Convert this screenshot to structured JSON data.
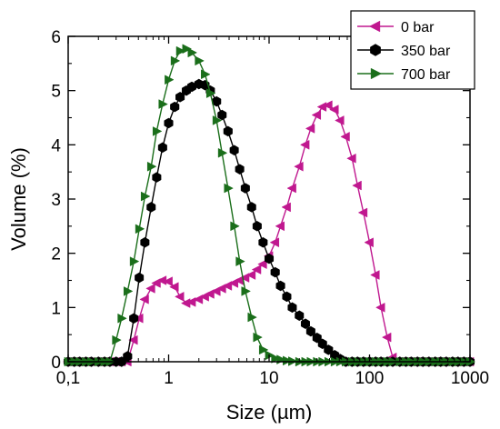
{
  "chart_data": {
    "type": "line",
    "xlabel": "Size (µm)",
    "ylabel": "Volume (%)",
    "x_scale": "log",
    "xlim": [
      0.1,
      1000
    ],
    "ylim": [
      0,
      6
    ],
    "x_ticks": [
      0.1,
      1,
      10,
      100,
      1000
    ],
    "x_tick_labels": [
      "0,1",
      "1",
      "10",
      "100",
      "1000"
    ],
    "y_ticks": [
      0,
      1,
      2,
      3,
      4,
      5,
      6
    ],
    "y_tick_labels": [
      "0",
      "1",
      "2",
      "3",
      "4",
      "5",
      "6"
    ],
    "grid": false,
    "legend_position": "top-right",
    "series": [
      {
        "name": "0 bar",
        "color": "#c0188f",
        "marker": "triangle-left",
        "x": [
          0.1,
          0.115,
          0.13,
          0.15,
          0.17,
          0.2,
          0.23,
          0.26,
          0.3,
          0.34,
          0.39,
          0.45,
          0.51,
          0.58,
          0.67,
          0.76,
          0.87,
          1.0,
          1.15,
          1.3,
          1.5,
          1.7,
          2.0,
          2.3,
          2.6,
          3.0,
          3.4,
          3.9,
          4.5,
          5.1,
          5.8,
          6.7,
          7.6,
          8.7,
          10,
          11.5,
          13,
          15,
          17,
          20,
          23,
          26,
          30,
          34,
          39,
          45,
          51,
          58,
          67,
          76,
          87,
          100,
          115,
          130,
          150,
          170,
          200,
          230,
          260,
          300,
          340,
          390,
          450,
          510,
          580,
          670,
          760,
          870,
          1000
        ],
        "y": [
          0,
          0,
          0,
          0,
          0,
          0,
          0,
          0,
          0,
          0,
          0,
          0.4,
          0.8,
          1.15,
          1.35,
          1.45,
          1.5,
          1.48,
          1.38,
          1.2,
          1.08,
          1.1,
          1.15,
          1.2,
          1.25,
          1.3,
          1.35,
          1.4,
          1.45,
          1.5,
          1.55,
          1.6,
          1.7,
          1.8,
          1.95,
          2.2,
          2.5,
          2.85,
          3.2,
          3.6,
          4.0,
          4.3,
          4.55,
          4.7,
          4.73,
          4.65,
          4.45,
          4.15,
          3.75,
          3.25,
          2.75,
          2.2,
          1.6,
          1.0,
          0.45,
          0.08,
          0,
          0,
          0,
          0,
          0,
          0,
          0,
          0,
          0,
          0,
          0,
          0,
          0
        ]
      },
      {
        "name": "350 bar",
        "color": "#000000",
        "marker": "hexagon",
        "x": [
          0.1,
          0.115,
          0.13,
          0.15,
          0.17,
          0.2,
          0.23,
          0.26,
          0.3,
          0.34,
          0.39,
          0.45,
          0.51,
          0.58,
          0.67,
          0.76,
          0.87,
          1.0,
          1.15,
          1.3,
          1.5,
          1.7,
          2.0,
          2.3,
          2.6,
          3.0,
          3.4,
          3.9,
          4.5,
          5.1,
          5.8,
          6.7,
          7.6,
          8.7,
          10,
          11.5,
          13,
          15,
          17,
          20,
          23,
          26,
          30,
          34,
          39,
          45,
          51,
          58,
          67,
          76,
          87,
          100,
          115,
          130,
          150,
          170,
          200,
          230,
          260,
          300,
          340,
          390,
          450,
          510,
          580,
          670,
          760,
          870,
          1000
        ],
        "y": [
          0,
          0,
          0,
          0,
          0,
          0,
          0,
          0,
          0,
          0,
          0.1,
          0.8,
          1.55,
          2.2,
          2.85,
          3.4,
          3.95,
          4.4,
          4.7,
          4.88,
          5.0,
          5.07,
          5.12,
          5.1,
          5.0,
          4.8,
          4.55,
          4.25,
          3.9,
          3.55,
          3.2,
          2.85,
          2.5,
          2.2,
          1.9,
          1.65,
          1.4,
          1.2,
          1.0,
          0.85,
          0.7,
          0.56,
          0.44,
          0.33,
          0.22,
          0.12,
          0.05,
          0,
          0,
          0,
          0,
          0,
          0,
          0,
          0,
          0,
          0,
          0,
          0,
          0,
          0,
          0,
          0,
          0,
          0,
          0,
          0,
          0,
          0
        ]
      },
      {
        "name": "700 bar",
        "color": "#1a6e1a",
        "marker": "triangle-right",
        "x": [
          0.1,
          0.115,
          0.13,
          0.15,
          0.17,
          0.2,
          0.23,
          0.26,
          0.3,
          0.34,
          0.39,
          0.45,
          0.51,
          0.58,
          0.67,
          0.76,
          0.87,
          1.0,
          1.15,
          1.3,
          1.5,
          1.7,
          2.0,
          2.3,
          2.6,
          3.0,
          3.4,
          3.9,
          4.5,
          5.1,
          5.8,
          6.7,
          7.6,
          8.7,
          10,
          11.5,
          13,
          15,
          17,
          20,
          23,
          26,
          30,
          34,
          39,
          45,
          51,
          58,
          67,
          76,
          87,
          100,
          115,
          130,
          150,
          170,
          200,
          230,
          260,
          300,
          340,
          390,
          450,
          510,
          580,
          670,
          760,
          870,
          1000
        ],
        "y": [
          0,
          0,
          0,
          0,
          0,
          0,
          0,
          0,
          0.4,
          0.8,
          1.3,
          1.85,
          2.45,
          3.05,
          3.6,
          4.25,
          4.75,
          5.2,
          5.55,
          5.73,
          5.77,
          5.7,
          5.55,
          5.3,
          4.95,
          4.45,
          3.85,
          3.2,
          2.5,
          1.85,
          1.3,
          0.82,
          0.45,
          0.22,
          0.12,
          0.06,
          0.04,
          0.02,
          0.01,
          0,
          0,
          0,
          0,
          0,
          0,
          0,
          0,
          0,
          0,
          0,
          0,
          0,
          0,
          0,
          0,
          0,
          0,
          0,
          0,
          0,
          0,
          0,
          0,
          0,
          0,
          0,
          0,
          0,
          0
        ]
      }
    ]
  }
}
